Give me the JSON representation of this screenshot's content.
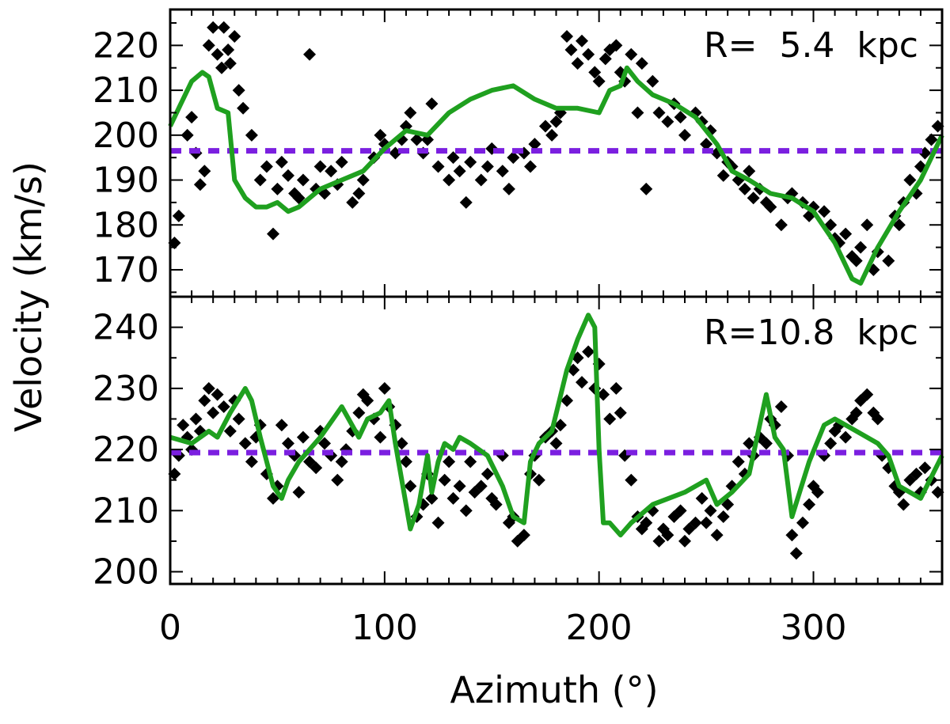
{
  "chart_data": {
    "type": "scatter",
    "xlabel": "Azimuth (°)",
    "ylabel": "Velocity (km/s)",
    "x_ticks": [
      0,
      100,
      200,
      300
    ],
    "xlim": [
      0,
      360
    ],
    "colors": {
      "points": "#000000",
      "model_line": "#1fa01f",
      "mean_line": "#7b1fe0"
    },
    "panels": [
      {
        "label": "R=  5.4  kpc",
        "ylim": [
          164,
          228
        ],
        "y_ticks": [
          170,
          180,
          190,
          200,
          210,
          220
        ],
        "mean_velocity": 196.5,
        "model_line": {
          "x": [
            0,
            5,
            10,
            15,
            18,
            22,
            27,
            30,
            35,
            40,
            45,
            50,
            55,
            60,
            70,
            80,
            90,
            100,
            110,
            120,
            130,
            140,
            150,
            160,
            170,
            180,
            190,
            200,
            205,
            210,
            213,
            218,
            225,
            235,
            245,
            255,
            262,
            270,
            280,
            290,
            300,
            310,
            318,
            322,
            330,
            340,
            350,
            360
          ],
          "y": [
            202,
            207,
            212,
            214,
            213,
            206,
            205,
            190,
            186,
            184,
            184,
            185,
            183,
            184,
            188,
            190,
            192,
            197,
            201,
            200,
            205,
            208,
            210,
            211,
            208,
            206,
            206,
            205,
            210,
            211,
            215,
            212,
            209,
            207,
            204,
            198,
            192,
            190,
            187,
            186,
            183,
            176,
            168,
            167,
            175,
            183,
            190,
            200
          ]
        },
        "points": {
          "x": [
            2,
            4,
            8,
            10,
            12,
            14,
            16,
            18,
            20,
            22,
            24,
            25,
            27,
            28,
            30,
            32,
            34,
            38,
            42,
            45,
            48,
            50,
            52,
            55,
            58,
            60,
            62,
            65,
            68,
            70,
            72,
            75,
            78,
            80,
            85,
            88,
            90,
            95,
            98,
            100,
            105,
            108,
            110,
            112,
            115,
            118,
            120,
            122,
            125,
            130,
            132,
            135,
            138,
            140,
            145,
            148,
            150,
            155,
            158,
            160,
            165,
            168,
            170,
            175,
            178,
            180,
            182,
            185,
            187,
            190,
            192,
            195,
            198,
            200,
            203,
            205,
            208,
            210,
            212,
            215,
            218,
            220,
            222,
            225,
            228,
            232,
            235,
            238,
            240,
            245,
            248,
            250,
            252,
            255,
            258,
            260,
            262,
            265,
            268,
            270,
            272,
            275,
            278,
            280,
            285,
            288,
            290,
            295,
            298,
            300,
            305,
            308,
            310,
            312,
            315,
            318,
            320,
            322,
            325,
            328,
            330,
            335,
            338,
            340,
            342,
            345,
            348,
            350,
            352,
            355,
            358
          ],
          "y": [
            176,
            182,
            200,
            204,
            196,
            189,
            192,
            220,
            224,
            218,
            215,
            224,
            219,
            216,
            222,
            210,
            206,
            200,
            190,
            193,
            178,
            188,
            194,
            191,
            187,
            186,
            190,
            218,
            188,
            193,
            187,
            192,
            189,
            194,
            185,
            187,
            190,
            195,
            200,
            198,
            196,
            199,
            202,
            205,
            199,
            196,
            199,
            207,
            193,
            190,
            195,
            192,
            185,
            194,
            190,
            193,
            197,
            192,
            188,
            195,
            196,
            193,
            198,
            202,
            200,
            203,
            205,
            222,
            219,
            216,
            221,
            218,
            214,
            212,
            217,
            219,
            220,
            214,
            212,
            218,
            205,
            216,
            188,
            212,
            205,
            203,
            207,
            204,
            200,
            205,
            203,
            198,
            201,
            196,
            191,
            194,
            193,
            190,
            188,
            192,
            186,
            188,
            185,
            184,
            180,
            186,
            187,
            185,
            182,
            184,
            183,
            180,
            177,
            176,
            178,
            173,
            172,
            175,
            180,
            170,
            174,
            172,
            182,
            180,
            185,
            190,
            187,
            193,
            196,
            199,
            202
          ]
        }
      },
      {
        "label": "R=10.8  kpc",
        "ylim": [
          198,
          245
        ],
        "y_ticks": [
          200,
          210,
          220,
          230,
          240
        ],
        "mean_velocity": 219.5,
        "model_line": {
          "x": [
            0,
            10,
            18,
            22,
            28,
            35,
            38,
            42,
            48,
            52,
            55,
            60,
            70,
            80,
            88,
            92,
            98,
            102,
            105,
            108,
            112,
            116,
            120,
            122,
            125,
            128,
            132,
            135,
            140,
            148,
            155,
            160,
            165,
            168,
            172,
            178,
            185,
            190,
            195,
            198,
            200,
            202,
            205,
            210,
            215,
            225,
            240,
            250,
            255,
            262,
            270,
            278,
            282,
            286,
            290,
            298,
            305,
            310,
            320,
            330,
            335,
            340,
            350,
            360
          ],
          "y": [
            222,
            221,
            223,
            222,
            226,
            230,
            228,
            222,
            214,
            212,
            215,
            218,
            222,
            227,
            222,
            225,
            226,
            228,
            221,
            215,
            207,
            211,
            219,
            213,
            218,
            221,
            220,
            222,
            221,
            219,
            214,
            209,
            208,
            218,
            221,
            223,
            233,
            238,
            242,
            240,
            220,
            208,
            208,
            206,
            208,
            211,
            213,
            215,
            211,
            213,
            216,
            229,
            222,
            220,
            209,
            218,
            224,
            225,
            223,
            221,
            219,
            214,
            212,
            219
          ]
        },
        "points": {
          "x": [
            2,
            4,
            6,
            8,
            10,
            12,
            14,
            16,
            18,
            20,
            22,
            25,
            28,
            30,
            32,
            35,
            38,
            40,
            42,
            45,
            48,
            50,
            52,
            55,
            58,
            60,
            62,
            65,
            68,
            70,
            72,
            75,
            78,
            80,
            82,
            85,
            88,
            90,
            92,
            95,
            98,
            100,
            102,
            105,
            108,
            110,
            112,
            115,
            118,
            120,
            122,
            125,
            128,
            130,
            132,
            135,
            138,
            140,
            142,
            145,
            148,
            150,
            152,
            155,
            158,
            160,
            162,
            165,
            168,
            170,
            172,
            175,
            178,
            180,
            182,
            185,
            188,
            190,
            192,
            195,
            198,
            200,
            202,
            205,
            208,
            210,
            212,
            215,
            218,
            220,
            222,
            225,
            228,
            230,
            232,
            235,
            238,
            240,
            242,
            245,
            248,
            250,
            252,
            255,
            258,
            260,
            262,
            265,
            268,
            270,
            272,
            275,
            278,
            280,
            282,
            285,
            288,
            290,
            292,
            295,
            298,
            300,
            302,
            305,
            308,
            310,
            312,
            315,
            318,
            320,
            322,
            325,
            328,
            330,
            332,
            335,
            338,
            340,
            342,
            345,
            348,
            350,
            352,
            355,
            358
          ],
          "y": [
            216,
            219,
            224,
            222,
            220,
            225,
            223,
            228,
            230,
            226,
            229,
            227,
            223,
            228,
            225,
            221,
            218,
            222,
            224,
            216,
            212,
            214,
            224,
            221,
            219,
            213,
            222,
            218,
            217,
            223,
            221,
            219,
            215,
            218,
            220,
            223,
            226,
            229,
            228,
            225,
            222,
            230,
            227,
            224,
            221,
            218,
            214,
            209,
            211,
            216,
            212,
            208,
            215,
            218,
            212,
            214,
            210,
            218,
            213,
            214,
            216,
            212,
            211,
            219,
            208,
            209,
            205,
            206,
            216,
            219,
            215,
            222,
            223,
            221,
            224,
            228,
            233,
            235,
            231,
            236,
            230,
            234,
            229,
            225,
            230,
            226,
            219,
            215,
            209,
            207,
            208,
            210,
            205,
            207,
            206,
            209,
            210,
            205,
            207,
            208,
            212,
            208,
            210,
            206,
            209,
            211,
            214,
            218,
            216,
            221,
            219,
            222,
            221,
            225,
            224,
            227,
            219,
            206,
            203,
            208,
            211,
            214,
            213,
            219,
            221,
            223,
            224,
            222,
            225,
            226,
            228,
            229,
            226,
            225,
            219,
            217,
            214,
            213,
            211,
            215,
            216,
            213,
            217,
            215,
            213
          ]
        }
      }
    ]
  }
}
